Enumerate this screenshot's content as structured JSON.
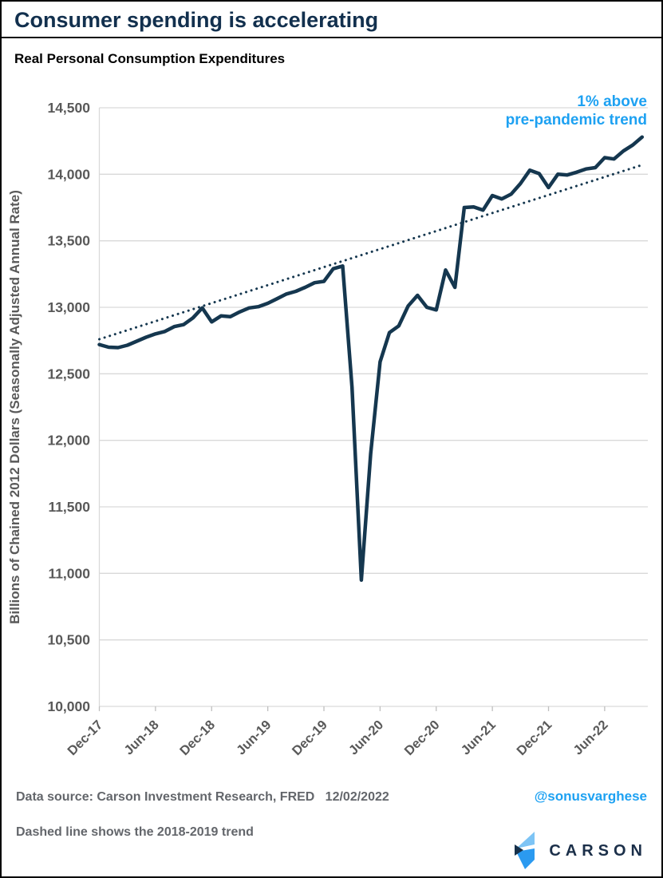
{
  "header": {
    "title": "Consumer spending is accelerating",
    "subtitle": "Real Personal Consumption Expenditures"
  },
  "footer": {
    "source_line": "Data source: Carson Investment Research, FRED   12/02/2022",
    "note_line": "Dashed line shows the 2018-2019 trend",
    "handle": "@sonusvarghese",
    "logo_text": "CARSON"
  },
  "colors": {
    "line_navy": "#15374f",
    "title_navy": "#12304e",
    "accent_blue": "#1da1f2",
    "grid_gray": "#d9d9d9",
    "tick_gray": "#bfbfbf",
    "axis_text_gray": "#595959",
    "footer_gray": "#63666b",
    "logo_light_blue": "#7dc4f5",
    "logo_mid_blue": "#2b9af0",
    "logo_navy": "#16304a"
  },
  "chart_data": {
    "type": "line",
    "title": "Real Personal Consumption Expenditures",
    "ylabel": "Billions of Chained 2012 Dollars (Seasonally Adjusted Annual Rate)",
    "ylim": [
      10000,
      14500
    ],
    "ytick_step": 500,
    "grid": "horizontal",
    "legend_position": "none",
    "x_frequency": "monthly",
    "x_start": "Dec-17",
    "x_end": "Oct-22",
    "x_tick_labels": [
      "Dec-17",
      "Jun-18",
      "Dec-18",
      "Jun-19",
      "Dec-19",
      "Jun-20",
      "Dec-20",
      "Jun-21",
      "Dec-21",
      "Jun-22"
    ],
    "x_tick_every_months": 6,
    "series": [
      {
        "name": "Real Personal Consumption Expenditures",
        "style": "solid",
        "values": [
          12720,
          12700,
          12697,
          12715,
          12745,
          12775,
          12800,
          12818,
          12855,
          12870,
          12920,
          12995,
          12890,
          12935,
          12930,
          12965,
          12995,
          13005,
          13030,
          13065,
          13100,
          13120,
          13150,
          13185,
          13195,
          13290,
          13310,
          12400,
          10950,
          11900,
          12590,
          12810,
          12860,
          13010,
          13090,
          13000,
          12980,
          13280,
          13150,
          13750,
          13755,
          13730,
          13840,
          13815,
          13850,
          13930,
          14030,
          14005,
          13900,
          14000,
          13995,
          14015,
          14040,
          14050,
          14125,
          14115,
          14175,
          14220,
          14280
        ]
      },
      {
        "name": "2018-2019 trend",
        "style": "dotted",
        "trend_start_value": 12760,
        "trend_end_value": 14070
      }
    ],
    "annotation": {
      "line1": "1% above",
      "line2": "pre-pandemic trend"
    }
  }
}
